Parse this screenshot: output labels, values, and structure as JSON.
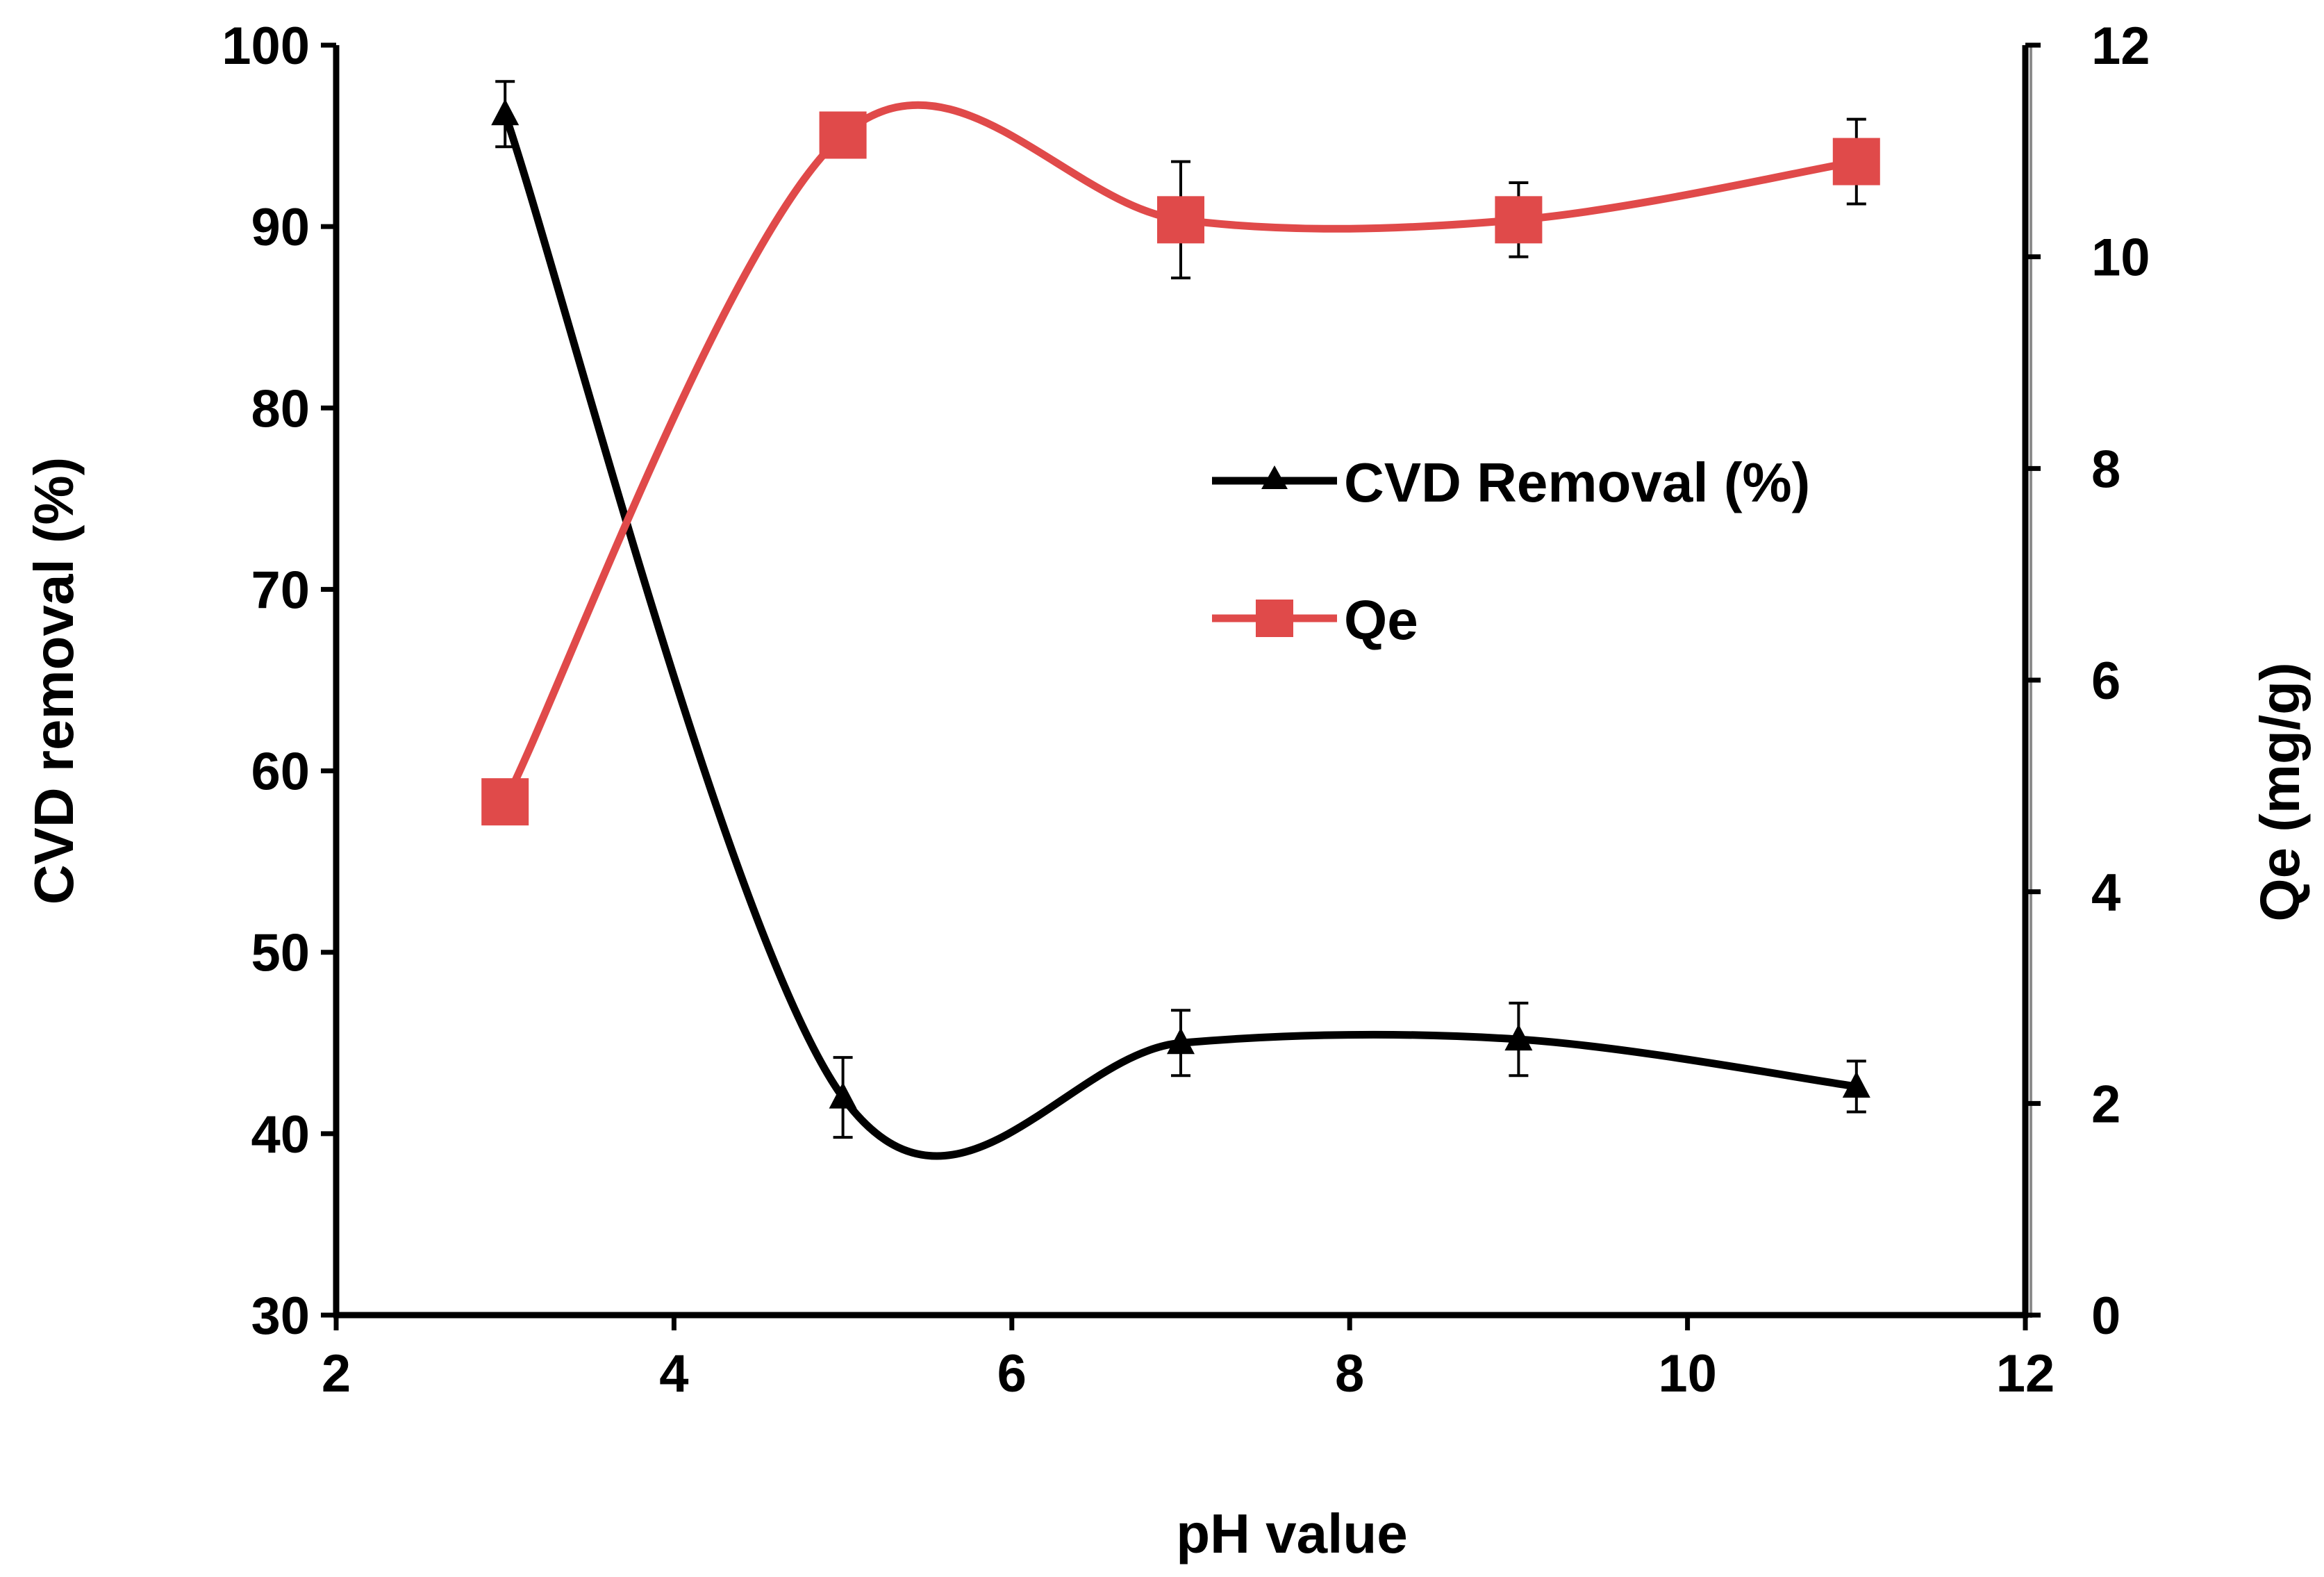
{
  "chart_data": {
    "type": "line",
    "title": "",
    "xlabel": "pH value",
    "ylabel_left": "CVD removal (%)",
    "ylabel_right": "Qe (mg/g)",
    "xlim": [
      2,
      12
    ],
    "ylim_left": [
      30,
      100
    ],
    "ylim_right": [
      0,
      12
    ],
    "x_ticks": [
      2,
      4,
      6,
      8,
      10,
      12
    ],
    "y_left_ticks": [
      30,
      40,
      50,
      60,
      70,
      80,
      90,
      100
    ],
    "y_right_ticks": [
      0,
      2,
      4,
      6,
      8,
      10,
      12
    ],
    "grid": false,
    "legend_position": "center-right",
    "x": [
      3,
      5,
      7,
      9,
      11
    ],
    "series": [
      {
        "name": "CVD Removal (%)",
        "axis": "left",
        "color": "#000000",
        "marker": "triangle",
        "values": [
          96.2,
          42.0,
          45.0,
          45.2,
          42.6
        ],
        "error": [
          1.8,
          2.2,
          1.8,
          2.0,
          1.4
        ]
      },
      {
        "name": "Qe",
        "axis": "right",
        "color": "#e04a4a",
        "marker": "square",
        "values": [
          4.85,
          11.15,
          10.35,
          10.35,
          10.9
        ],
        "error": [
          0.2,
          0.2,
          0.55,
          0.35,
          0.4
        ]
      }
    ]
  }
}
